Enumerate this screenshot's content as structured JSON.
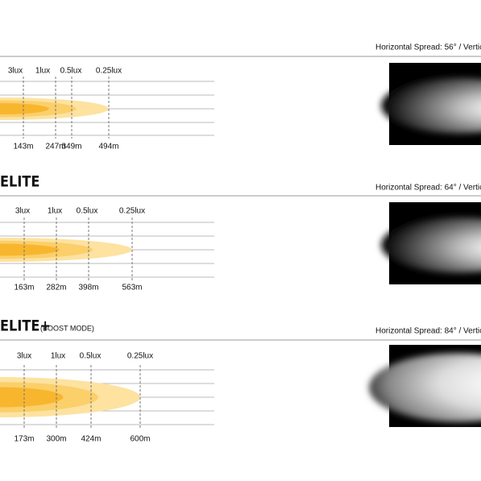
{
  "sections": [
    {
      "spread": "Horizontal Spread: 56° / Vertic",
      "lux_labels": [
        "3lux",
        "1lux",
        "0.5lux",
        "0.25lux"
      ],
      "distances": [
        "143m",
        "247m",
        "349m",
        "494m"
      ]
    },
    {
      "title": "ELITE",
      "spread": "Horizontal Spread: 64° / Vertic",
      "lux_labels": [
        "3lux",
        "1lux",
        "0.5lux",
        "0.25lux"
      ],
      "distances": [
        "163m",
        "282m",
        "398m",
        "563m"
      ]
    },
    {
      "title": "ELITE+",
      "subtitle": "(BOOST MODE)",
      "spread": "Horizontal Spread: 84° / Vertic",
      "lux_labels": [
        "3lux",
        "1lux",
        "0.5lux",
        "0.25lux"
      ],
      "distances": [
        "173m",
        "300m",
        "424m",
        "600m"
      ]
    }
  ]
}
